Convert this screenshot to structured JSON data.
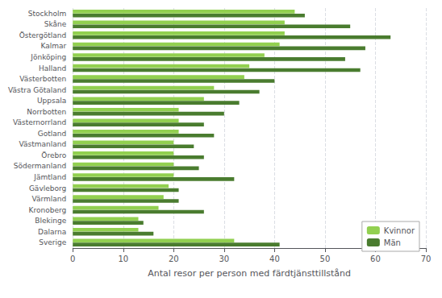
{
  "chart_data": {
    "type": "bar",
    "orientation": "horizontal",
    "categories": [
      "Sverige",
      "Dalarna",
      "Blekinge",
      "Kronoberg",
      "Värmland",
      "Gävleborg",
      "Jämtland",
      "Södermanland",
      "Örebro",
      "Västmanland",
      "Gotland",
      "Västernorrland",
      "Norrbotten",
      "Uppsala",
      "Västra Götaland",
      "Västerbotten",
      "Halland",
      "Jönköping",
      "Kalmar",
      "Östergötland",
      "Skåne",
      "Stockholm"
    ],
    "series": [
      {
        "name": "Kvinnor",
        "color": "#92d050",
        "values": [
          32,
          13,
          13,
          17,
          18,
          19,
          20,
          20,
          20,
          20,
          21,
          21,
          21,
          26,
          28,
          34,
          35,
          38,
          41,
          42,
          42,
          44
        ]
      },
      {
        "name": "Män",
        "color": "#4a7c2f",
        "values": [
          41,
          16,
          14,
          26,
          21,
          21,
          32,
          25,
          26,
          24,
          28,
          26,
          30,
          33,
          37,
          40,
          57,
          54,
          58,
          63,
          55,
          46
        ]
      }
    ],
    "xlabel": "Antal resor per person med färdtjänsttillstånd",
    "xlim": [
      0,
      70
    ],
    "xticks": [
      0,
      10,
      20,
      30,
      40,
      50,
      60,
      70
    ],
    "grid": true,
    "legend": "lower right"
  }
}
